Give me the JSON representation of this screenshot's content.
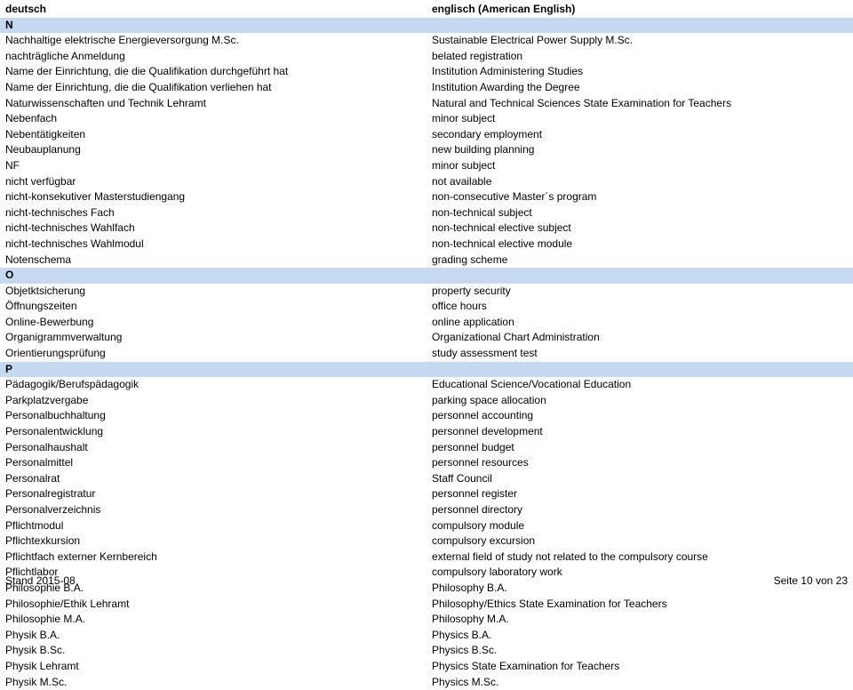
{
  "header": {
    "de": "deutsch",
    "en": "englisch (American English)"
  },
  "sections": [
    {
      "letter": "N",
      "rows": [
        {
          "de": "Nachhaltige elektrische Energieversorgung M.Sc.",
          "en": "Sustainable Electrical Power Supply M.Sc."
        },
        {
          "de": "nachträgliche Anmeldung",
          "en": "belated registration"
        },
        {
          "de": "Name der Einrichtung, die die Qualifikation durchgeführt hat",
          "en": "Institution Administering Studies"
        },
        {
          "de": "Name der Einrichtung, die die Qualifikation verliehen hat",
          "en": "Institution Awarding the Degree"
        },
        {
          "de": "Naturwissenschaften und Technik Lehramt",
          "en": "Natural and Technical Sciences State Examination for Teachers"
        },
        {
          "de": "Nebenfach",
          "en": "minor subject"
        },
        {
          "de": "Nebentätigkeiten",
          "en": "secondary employment"
        },
        {
          "de": "Neubauplanung",
          "en": "new building planning"
        },
        {
          "de": "NF",
          "en": "minor subject"
        },
        {
          "de": "nicht verfügbar",
          "en": "not available"
        },
        {
          "de": "nicht-konsekutiver Masterstudiengang",
          "en": "non-consecutive Master´s program"
        },
        {
          "de": "nicht-technisches Fach",
          "en": "non-technical subject"
        },
        {
          "de": "nicht-technisches Wahlfach",
          "en": "non-technical elective subject"
        },
        {
          "de": "nicht-technisches Wahlmodul",
          "en": "non-technical elective module"
        },
        {
          "de": "Notenschema",
          "en": "grading scheme"
        }
      ]
    },
    {
      "letter": "O",
      "rows": [
        {
          "de": "Objetktsicherung",
          "en": "property security"
        },
        {
          "de": "Öffnungszeiten",
          "en": "office hours"
        },
        {
          "de": "Online-Bewerbung",
          "en": "online application"
        },
        {
          "de": "Organigrammverwaltung",
          "en": "Organizational Chart Administration"
        },
        {
          "de": "Orientierungsprüfung",
          "en": "study assessment test"
        }
      ]
    },
    {
      "letter": "P",
      "rows": [
        {
          "de": "Pädagogik/Berufspädagogik",
          "en": "Educational Science/Vocational Education"
        },
        {
          "de": "Parkplatzvergabe",
          "en": "parking space allocation"
        },
        {
          "de": "Personalbuchhaltung",
          "en": "personnel accounting"
        },
        {
          "de": "Personalentwicklung",
          "en": "personnel development"
        },
        {
          "de": "Personalhaushalt",
          "en": "personnel budget"
        },
        {
          "de": "Personalmittel",
          "en": "personnel resources"
        },
        {
          "de": "Personalrat",
          "en": "Staff Council"
        },
        {
          "de": "Personalregistratur",
          "en": "personnel register"
        },
        {
          "de": "Personalverzeichnis",
          "en": "personnel directory"
        },
        {
          "de": "Pflichtmodul",
          "en": "compulsory module"
        },
        {
          "de": "Pflichtexkursion",
          "en": "compulsory excursion"
        },
        {
          "de": "Pflichtfach externer Kernbereich",
          "en": "external field of study not related to the compulsory course"
        },
        {
          "de": "Pflichtlabor",
          "en": "compulsory laboratory work"
        },
        {
          "de": "Philosophie B.A.",
          "en": "Philosophy B.A."
        },
        {
          "de": "Philosophie/Ethik Lehramt",
          "en": "Philosophy/Ethics State Examination for Teachers"
        },
        {
          "de": "Philosophie M.A.",
          "en": "Philosophy M.A."
        },
        {
          "de": "Physik B.A.",
          "en": "Physics B.A."
        },
        {
          "de": "Physik B.Sc.",
          "en": "Physics B.Sc."
        },
        {
          "de": "Physik Lehramt",
          "en": "Physics State Examination for Teachers"
        },
        {
          "de": "Physik M.Sc.",
          "en": "Physics M.Sc."
        }
      ]
    }
  ],
  "footer": {
    "left": "Stand 2015-08",
    "right": "Seite 10 von 23"
  },
  "colors": {
    "section_bg": "#c5d9f1",
    "text": "#000000",
    "page_bg": "#ffffff"
  }
}
